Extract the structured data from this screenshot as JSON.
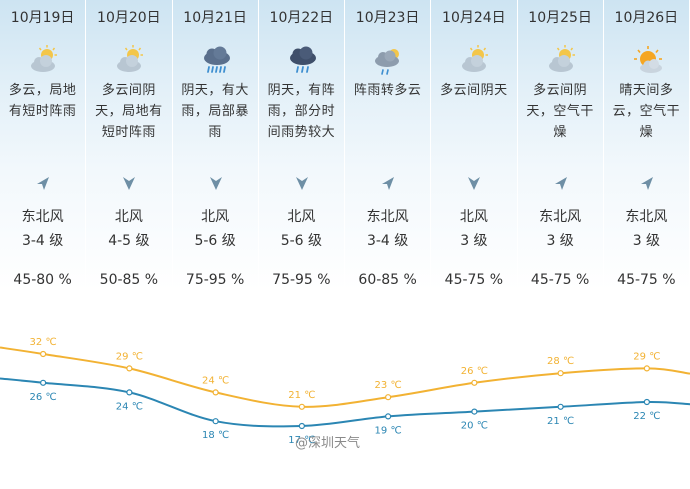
{
  "days": [
    {
      "date": "10月19日",
      "icon": "partly-cloudy-icon",
      "desc": "多云，局地有短时阵雨",
      "wind_dir": "东北风",
      "wind_level": "3-4 级",
      "humidity": "45-80 %"
    },
    {
      "date": "10月20日",
      "icon": "partly-cloudy-icon",
      "desc": "多云间阴天，局地有短时阵雨",
      "wind_dir": "北风",
      "wind_level": "4-5 级",
      "humidity": "50-85 %"
    },
    {
      "date": "10月21日",
      "icon": "heavy-rain-icon",
      "desc": "阴天，有大雨，局部暴雨",
      "wind_dir": "北风",
      "wind_level": "5-6 级",
      "humidity": "75-95 %"
    },
    {
      "date": "10月22日",
      "icon": "rain-icon",
      "desc": "阴天，有阵雨，部分时间雨势较大",
      "wind_dir": "北风",
      "wind_level": "5-6 级",
      "humidity": "75-95 %"
    },
    {
      "date": "10月23日",
      "icon": "shower-cloudy-icon",
      "desc": "阵雨转多云",
      "wind_dir": "东北风",
      "wind_level": "3-4 级",
      "humidity": "60-85 %"
    },
    {
      "date": "10月24日",
      "icon": "partly-cloudy-icon",
      "desc": "多云间阴天",
      "wind_dir": "北风",
      "wind_level": "3 级",
      "humidity": "45-75 %"
    },
    {
      "date": "10月25日",
      "icon": "partly-cloudy-icon",
      "desc": "多云间阴天，空气干燥",
      "wind_dir": "东北风",
      "wind_level": "3 级",
      "humidity": "45-75 %"
    },
    {
      "date": "10月26日",
      "icon": "sunny-cloudy-icon",
      "desc": "晴天间多云，空气干燥",
      "wind_dir": "东北风",
      "wind_level": "3 级",
      "humidity": "45-75 %"
    }
  ],
  "chart_data": {
    "type": "line",
    "categories": [
      "10月19日",
      "10月20日",
      "10月21日",
      "10月22日",
      "10月23日",
      "10月24日",
      "10月25日",
      "10月26日"
    ],
    "series": [
      {
        "values": [
          32,
          29,
          24,
          21,
          23,
          26,
          28,
          29
        ],
        "labels": [
          "32 ℃",
          "29 ℃",
          "24 ℃",
          "21 ℃",
          "23 ℃",
          "26 ℃",
          "28 ℃",
          "29 ℃"
        ],
        "color": "#f2b233"
      },
      {
        "values": [
          26,
          24,
          18,
          17,
          19,
          20,
          21,
          22
        ],
        "labels": [
          "26 ℃",
          "24 ℃",
          "18 ℃",
          "17 ℃",
          "19 ℃",
          "20 ℃",
          "21 ℃",
          "22 ℃"
        ],
        "color": "#2b86b3"
      }
    ]
  },
  "colors": {
    "high": "#f2b233",
    "low": "#2b86b3",
    "arrow": "#6e8fa5"
  },
  "watermark": "@深圳天气"
}
